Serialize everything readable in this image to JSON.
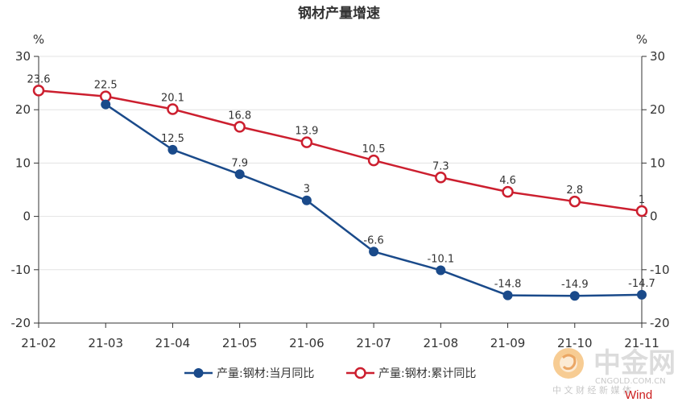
{
  "chart_data": {
    "type": "line",
    "title": "钢材产量增速",
    "y_unit_left": "%",
    "y_unit_right": "%",
    "ylim": [
      -20,
      30
    ],
    "yticks": [
      -20,
      -10,
      0,
      10,
      20,
      30
    ],
    "categories": [
      "21-02",
      "21-03",
      "21-04",
      "21-05",
      "21-06",
      "21-07",
      "21-08",
      "21-09",
      "21-10",
      "21-11"
    ],
    "grid": true,
    "legend_position": "bottom",
    "series": [
      {
        "name": "产量:钢材:当月同比",
        "color": "#1a4a8a",
        "marker": "filled-circle",
        "values": [
          null,
          21,
          12.5,
          7.9,
          3,
          -6.6,
          -10.1,
          -14.8,
          -14.9,
          -14.7
        ],
        "labels": [
          "",
          "",
          "12.5",
          "7.9",
          "3",
          "-6.6",
          "-10.1",
          "-14.8",
          "-14.9",
          "-14.7"
        ]
      },
      {
        "name": "产量:钢材:累计同比",
        "color": "#cc1f2f",
        "marker": "hollow-circle",
        "values": [
          23.6,
          22.5,
          20.1,
          16.8,
          13.9,
          10.5,
          7.3,
          4.6,
          2.8,
          1
        ],
        "labels": [
          "23.6",
          "22.5",
          "20.1",
          "16.8",
          "13.9",
          "10.5",
          "7.3",
          "4.6",
          "2.8",
          "1"
        ]
      }
    ]
  },
  "watermark": {
    "cn": "中金网",
    "url": "CNGOLD.COM.CN",
    "sub": "中 文 财 经 新 媒 体",
    "wind": "Wind"
  }
}
